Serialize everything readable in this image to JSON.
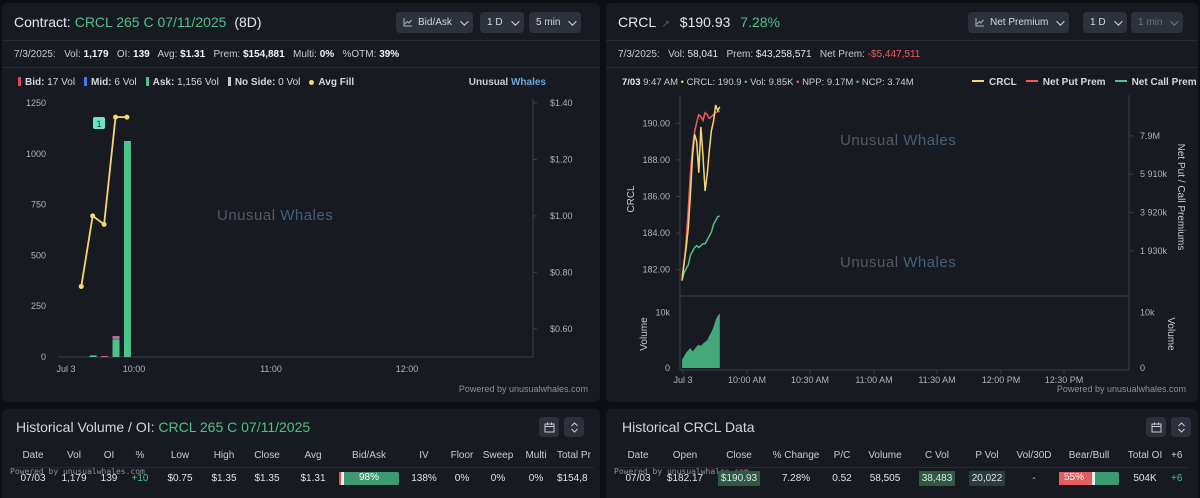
{
  "left_chart": {
    "title_prefix": "Contract:",
    "contract": "CRCL 265 C 07/11/2025",
    "days": "(8D)",
    "buttons": {
      "mode": "Bid/Ask",
      "range": "1 D",
      "interval": "5 min"
    },
    "stats": {
      "date": "7/3/2025:",
      "vol_label": "Vol:",
      "vol": "1,179",
      "oi_label": "OI:",
      "oi": "139",
      "avg_label": "Avg:",
      "avg": "$1.31",
      "prem_label": "Prem:",
      "prem": "$154,881",
      "multi_label": "Multi:",
      "multi": "0%",
      "otm_label": "%OTM:",
      "otm": "39%"
    },
    "legend": {
      "bid_label": "Bid:",
      "bid": "17 Vol",
      "mid_label": "Mid:",
      "mid": "6 Vol",
      "ask_label": "Ask:",
      "ask": "1,156 Vol",
      "noside_label": "No Side:",
      "noside": "0 Vol",
      "avgfill": "Avg Fill"
    },
    "brand": {
      "a": "Unusual",
      "b": "Whales"
    },
    "watermark": {
      "a": "Unusual",
      "b": "Whales"
    },
    "marker": "1",
    "powered": "Powered by unusualwhales.com",
    "colors": {
      "bid": "#e5484d",
      "mid": "#3e7bfa",
      "ask": "#4cc38a",
      "avg": "#f5d76e"
    }
  },
  "right_chart": {
    "ticker": "CRCL",
    "price": "$190.93",
    "change": "7.28%",
    "buttons": {
      "mode": "Net Premium",
      "range": "1 D",
      "interval": "1 min"
    },
    "stats": {
      "date": "7/3/2025:",
      "vol_label": "Vol:",
      "vol": "58,041",
      "prem_label": "Prem:",
      "prem": "$43,258,571",
      "netprem_label": "Net Prem:",
      "netprem": "-$5,447,511"
    },
    "info": {
      "date": "7/03",
      "time": "9:47 AM",
      "crcl": "CRCL: 190.9",
      "vol": "Vol: 9.85K",
      "npp": "NPP: 9.17M",
      "ncp": "NCP: 3.74M"
    },
    "legend": {
      "crcl": "CRCL",
      "npp": "Net Put Prem",
      "ncp": "Net Call Prem"
    },
    "watermark": {
      "a": "Unusual",
      "b": "Whales"
    },
    "axis_left_label": "CRCL",
    "axis_right_label": "Net Put / Call Premiums",
    "volume_label": "Volume",
    "powered": "Powered by unusualwhales.com",
    "colors": {
      "crcl": "#f5d76e",
      "npp": "#f25c5c",
      "ncp": "#4cc38a"
    }
  },
  "chart_data": [
    {
      "type": "bar",
      "title": "CRCL 265 C 07/11/2025",
      "x_ticks": [
        "Jul 3",
        "10:00",
        "11:00",
        "12:00"
      ],
      "y_ticks": [
        "1250",
        "1000",
        "750",
        "500",
        "250",
        "0"
      ],
      "y2_ticks": [
        "$1.40",
        "$1.20",
        "$1.00",
        "$0.80",
        "$0.60"
      ],
      "ylim": [
        0,
        1250
      ],
      "y2lim": [
        0.5,
        1.4
      ],
      "times_min": [
        570,
        575,
        580,
        585,
        590
      ],
      "series": [
        {
          "name": "Bid",
          "values": [
            0,
            0,
            5,
            12,
            0
          ]
        },
        {
          "name": "Mid",
          "values": [
            0,
            0,
            0,
            6,
            0
          ]
        },
        {
          "name": "Ask",
          "values": [
            0,
            8,
            0,
            85,
            1063
          ]
        },
        {
          "name": "Avg Fill",
          "values": [
            0.75,
            1.0,
            0.97,
            1.35,
            1.35
          ]
        }
      ]
    },
    {
      "type": "line",
      "title": "CRCL",
      "x_ticks": [
        "Jul 3",
        "10:00 AM",
        "10:30 AM",
        "11:00 AM",
        "11:30 AM",
        "12:00 PM",
        "12:30 PM"
      ],
      "y_ticks": [
        "190.00",
        "188.00",
        "186.00",
        "184.00",
        "182.00"
      ],
      "y2_ticks": [
        "7.9M",
        "5 910k",
        "3 920k",
        "1 930k"
      ],
      "vol_ticks": [
        "10k",
        "0"
      ],
      "ylim": [
        181.0,
        191.0
      ],
      "y2lim": [
        0,
        9.5
      ],
      "series": [
        {
          "name": "CRCL",
          "x": [
            0,
            1,
            2,
            3,
            4,
            5,
            6,
            7,
            8,
            9,
            10,
            11,
            12,
            13,
            14,
            15,
            16,
            17,
            18
          ],
          "values": [
            181.4,
            182.4,
            183.2,
            184.3,
            186.1,
            188.2,
            189.4,
            189.0,
            187.3,
            189.8,
            188.2,
            186.3,
            187.2,
            188.5,
            189.6,
            190.1,
            191.0,
            190.7,
            190.9
          ]
        },
        {
          "name": "Net Put Prem",
          "x": [
            0,
            1,
            2,
            3,
            4,
            5,
            6,
            7,
            8,
            9,
            10,
            11,
            12,
            13,
            14,
            15,
            16,
            17,
            18
          ],
          "values": [
            0.6,
            1.2,
            2.5,
            4.1,
            5.9,
            7.3,
            8.1,
            8.6,
            9.0,
            8.9,
            8.7,
            9.1,
            9.0,
            8.8,
            8.9,
            9.0,
            9.1,
            9.15,
            9.17
          ]
        },
        {
          "name": "Net Call Prem",
          "x": [
            0,
            1,
            2,
            3,
            4,
            5,
            6,
            7,
            8,
            9,
            10,
            11,
            12,
            13,
            14,
            15,
            16,
            17,
            18
          ],
          "values": [
            0.4,
            0.8,
            1.0,
            1.2,
            1.7,
            1.9,
            2.1,
            2.2,
            2.1,
            2.2,
            2.3,
            2.3,
            2.5,
            2.7,
            2.9,
            3.3,
            3.5,
            3.7,
            3.74
          ]
        },
        {
          "name": "Volume",
          "x": [
            0,
            1,
            2,
            3,
            4,
            5,
            6,
            7,
            8,
            9,
            10,
            11,
            12,
            13,
            14,
            15,
            16,
            17,
            18
          ],
          "values": [
            1.5,
            2.1,
            2.8,
            3.2,
            3.6,
            3.0,
            3.4,
            3.9,
            4.2,
            4.0,
            4.4,
            4.7,
            5.0,
            5.8,
            6.5,
            7.4,
            8.6,
            9.4,
            9.85
          ]
        }
      ]
    }
  ],
  "hist_left": {
    "title_prefix": "Historical Volume / OI:",
    "contract": "CRCL 265 C 07/11/2025",
    "powered": "Powered by unusualwhales.com",
    "columns": [
      "Date",
      "Vol",
      "OI",
      "%",
      "Low",
      "High",
      "Close",
      "Avg",
      "Bid/Ask",
      "IV",
      "Floor",
      "Sweep",
      "Multi",
      "Total Pr"
    ],
    "row": {
      "date": "07/03",
      "vol": "1,179",
      "oi": "139",
      "pct": "+10",
      "low": "$0.75",
      "high": "$1.35",
      "close": "$1.35",
      "avg": "$1.31",
      "bidask": "98%",
      "iv": "138%",
      "floor": "0%",
      "sweep": "0%",
      "multi": "0%",
      "total": "$154,8"
    }
  },
  "hist_right": {
    "title": "Historical CRCL Data",
    "powered": "Powered by unusualwhales.com",
    "columns": [
      "Date",
      "Open",
      "Close",
      "% Change",
      "P/C",
      "Volume",
      "C Vol",
      "P Vol",
      "Vol/30D",
      "Bear/Bull",
      "Total OI",
      "+6"
    ],
    "row": {
      "date": "07/03",
      "open": "$182.17",
      "close": "$190.93",
      "change": "7.28%",
      "pc": "0.52",
      "volume": "58,505",
      "cvol": "38,483",
      "pvol": "20,022",
      "vol30": "-",
      "bearbull": "55%",
      "totaloi": "504K",
      "extra": "+6"
    }
  }
}
